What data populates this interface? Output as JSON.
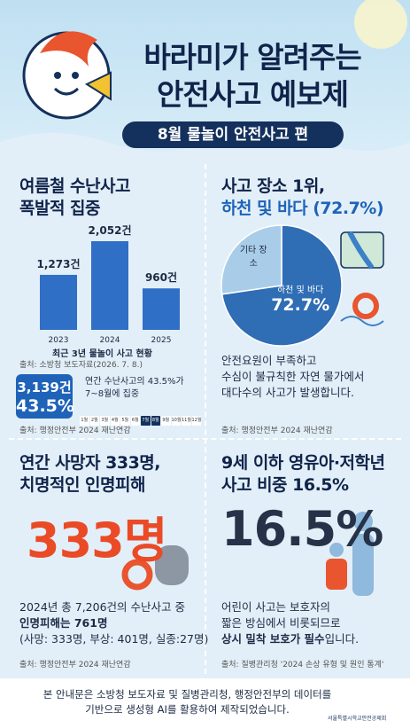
{
  "header": {
    "title_lines": [
      "바라미가 알려주는",
      "안전사고 예보제"
    ],
    "subtitle": "8월 물놀이 안전사고 편"
  },
  "panels": [
    {
      "heading_lines": [
        "여름철 수난사고",
        "폭발적 집중"
      ],
      "source": "출처: 소방청 보도자료(2026. 7. 8.)",
      "highlight": {
        "count": "3,139건",
        "share": "43.5%",
        "text_lines": [
          "연간 수난사고의 43.5%가",
          "7~8월에 집중"
        ],
        "months": [
          {
            "label": "1월",
            "highlight": false
          },
          {
            "label": "2월",
            "highlight": false
          },
          {
            "label": "3월",
            "highlight": false
          },
          {
            "label": "4월",
            "highlight": false
          },
          {
            "label": "5월",
            "highlight": false
          },
          {
            "label": "6월",
            "highlight": false
          },
          {
            "label": "7월",
            "highlight": true
          },
          {
            "label": "8월",
            "highlight": true
          },
          {
            "label": "9월",
            "highlight": false
          },
          {
            "label": "10월",
            "highlight": false
          },
          {
            "label": "11월",
            "highlight": false
          },
          {
            "label": "12월",
            "highlight": false
          }
        ]
      },
      "source2": "출처: 행정안전부 2024 재난연감"
    },
    {
      "heading_lines": [
        "사고 장소 1위,",
        "하천 및 바다 (72.7%)"
      ],
      "text_lines": [
        "안전요원이 부족하고",
        "수심이 불규칙한 자연 물가에서",
        "대다수의 사고가 발생합니다."
      ],
      "source": "출처: 행정안전부 2024 재난연감"
    },
    {
      "heading_lines": [
        "연간 사망자 333명,",
        "치명적인 인명피해"
      ],
      "big": "333명",
      "text_lines": [
        "2024년 총 7,206건의 수난사고 중",
        "인명피해는 761명",
        "(사망: 333명, 부상: 401명, 실종:27명)"
      ],
      "source": "출처: 행정안전부 2024 재난연감"
    },
    {
      "heading_lines": [
        "9세 이하 영유아·저학년",
        "사고 비중 16.5%"
      ],
      "big": "16.5%",
      "text_lines": [
        "어린이 사고는 보호자의",
        "짧은 방심에서 비롯되므로",
        {
          "bold": "상시 밀착 보호가 필수",
          "rest": "입니다."
        }
      ],
      "source": "출처: 질병관리청 '2024 손상 유형 및 원인 통계'"
    }
  ],
  "chart_data": [
    {
      "type": "bar",
      "title": "최근 3년 물놀이 사고 현황",
      "categories": [
        "2023",
        "2024",
        "2025"
      ],
      "values": [
        1273,
        2052,
        960
      ],
      "value_labels": [
        "1,273건",
        "2,052건",
        "960건"
      ],
      "color": "#2f6fc6"
    },
    {
      "type": "pie",
      "categories": [
        "하천 및 바다",
        "기타 장소"
      ],
      "values": [
        72.7,
        27.3
      ],
      "value_labels": [
        "72.7%",
        null
      ],
      "colors": [
        "#2f6db5",
        "#a9cde8"
      ]
    }
  ],
  "footer": {
    "text_lines": [
      "본 안내문은 소방청 보도자료 및 질병관리청, 행정안전부의 데이터를",
      "기반으로 생성형 AI를 활용하여 제작되었습니다."
    ],
    "logo": "서울특별시학교안전공제회"
  }
}
